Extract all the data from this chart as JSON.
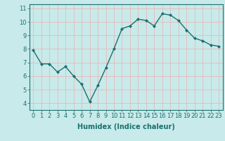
{
  "x": [
    0,
    1,
    2,
    3,
    4,
    5,
    6,
    7,
    8,
    9,
    10,
    11,
    12,
    13,
    14,
    15,
    16,
    17,
    18,
    19,
    20,
    21,
    22,
    23
  ],
  "y": [
    7.9,
    6.9,
    6.9,
    6.3,
    6.7,
    6.0,
    5.4,
    4.1,
    5.3,
    6.6,
    8.0,
    9.5,
    9.7,
    10.2,
    10.1,
    9.7,
    10.6,
    10.5,
    10.1,
    9.4,
    8.8,
    8.6,
    8.3,
    8.2
  ],
  "line_color": "#1a7070",
  "marker": "D",
  "marker_size": 2,
  "bg_color": "#c8eaea",
  "grid_color": "#e8b8b8",
  "xlabel": "Humidex (Indice chaleur)",
  "xlim": [
    -0.5,
    23.5
  ],
  "ylim": [
    3.5,
    11.3
  ],
  "xticks": [
    0,
    1,
    2,
    3,
    4,
    5,
    6,
    7,
    8,
    9,
    10,
    11,
    12,
    13,
    14,
    15,
    16,
    17,
    18,
    19,
    20,
    21,
    22,
    23
  ],
  "yticks": [
    4,
    5,
    6,
    7,
    8,
    9,
    10,
    11
  ],
  "tick_fontsize": 6,
  "xlabel_fontsize": 7,
  "line_width": 1.0,
  "spine_color": "#207070"
}
